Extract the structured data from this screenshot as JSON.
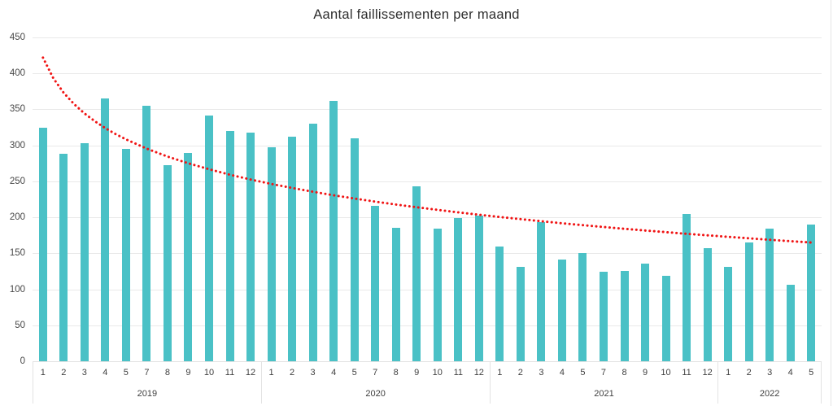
{
  "colors": {
    "bar": "#4ac1c6",
    "trend": "#f01414",
    "grid": "#e9e9e9",
    "axis_border": "#e3e3e3",
    "text": "#3f3f3f"
  },
  "chart_data": {
    "type": "bar",
    "title": "Aantal faillissementen per maand",
    "ylabel": "",
    "xlabel": "",
    "ylim": [
      0,
      450
    ],
    "y_ticks": [
      0,
      50,
      100,
      150,
      200,
      250,
      300,
      350,
      400,
      450
    ],
    "grid": "horizontal",
    "legend": "none",
    "groups": [
      {
        "year": "2019",
        "months": [
          "1",
          "2",
          "3",
          "4",
          "5",
          "7",
          "8",
          "9",
          "10",
          "11",
          "12"
        ],
        "values": [
          325,
          288,
          303,
          365,
          295,
          355,
          273,
          289,
          341,
          320,
          318
        ]
      },
      {
        "year": "2020",
        "months": [
          "1",
          "2",
          "3",
          "4",
          "5",
          "7",
          "8",
          "9",
          "10",
          "11",
          "12"
        ],
        "values": [
          297,
          312,
          330,
          362,
          310,
          216,
          186,
          243,
          184,
          199,
          202
        ]
      },
      {
        "year": "2021",
        "months": [
          "1",
          "2",
          "3",
          "4",
          "5",
          "7",
          "8",
          "9",
          "10",
          "11",
          "12"
        ],
        "values": [
          160,
          131,
          193,
          141,
          150,
          124,
          126,
          136,
          119,
          205,
          157
        ]
      },
      {
        "year": "2022",
        "months": [
          "1",
          "2",
          "3",
          "4",
          "5"
        ],
        "values": [
          131,
          165,
          184,
          106,
          190
        ]
      }
    ],
    "trendline": {
      "style": "dotted",
      "shape": "logarithmic-decay",
      "points": [
        [
          1,
          422.0
        ],
        [
          1.5,
          393.4
        ],
        [
          2,
          373.0
        ],
        [
          2.5,
          357.3
        ],
        [
          3,
          344.4
        ],
        [
          3.5,
          333.5
        ],
        [
          4,
          324.1
        ],
        [
          4.5,
          315.7
        ],
        [
          5,
          308.3
        ],
        [
          6,
          295.4
        ],
        [
          7,
          284.5
        ],
        [
          8,
          275.1
        ],
        [
          9,
          266.8
        ],
        [
          10,
          259.3
        ],
        [
          11,
          252.6
        ],
        [
          12,
          246.4
        ],
        [
          13,
          240.8
        ],
        [
          14,
          235.6
        ],
        [
          15,
          230.7
        ],
        [
          16,
          226.1
        ],
        [
          17,
          221.8
        ],
        [
          18,
          217.8
        ],
        [
          19,
          214.0
        ],
        [
          20,
          210.4
        ],
        [
          21,
          206.9
        ],
        [
          22,
          203.6
        ],
        [
          23,
          200.5
        ],
        [
          24,
          197.5
        ],
        [
          25,
          194.6
        ],
        [
          26,
          191.8
        ],
        [
          27,
          189.2
        ],
        [
          28,
          186.6
        ],
        [
          29,
          184.1
        ],
        [
          30,
          181.7
        ],
        [
          31,
          179.4
        ],
        [
          32,
          177.1
        ],
        [
          33,
          175.0
        ],
        [
          34,
          172.9
        ],
        [
          35,
          170.8
        ],
        [
          36,
          168.8
        ],
        [
          37,
          166.9
        ],
        [
          38,
          165.0
        ]
      ]
    }
  }
}
